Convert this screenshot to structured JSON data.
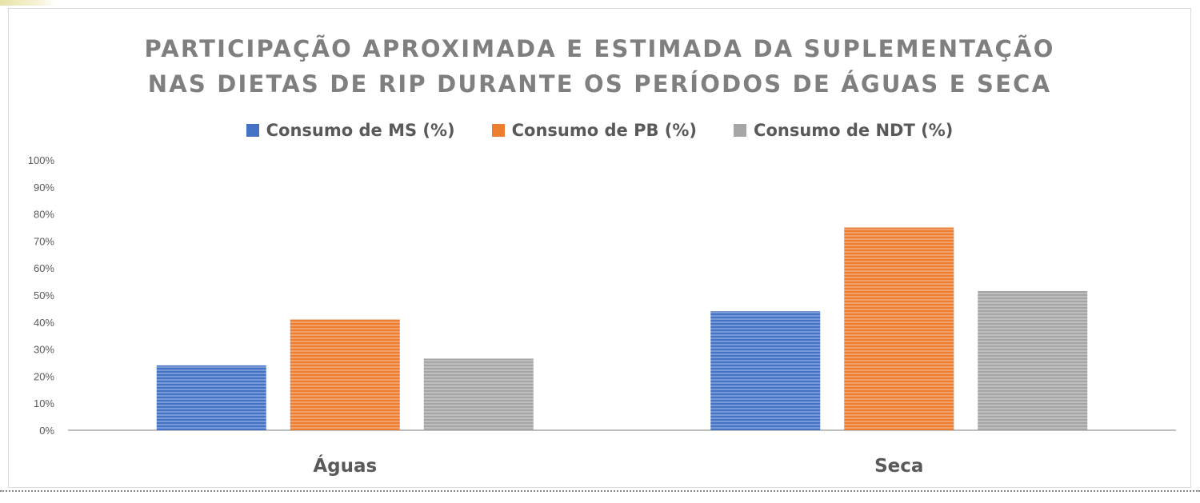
{
  "chart_data": {
    "type": "bar",
    "title_lines": [
      "PARTICIPAÇÃO APROXIMADA E ESTIMADA DA SUPLEMENTAÇÃO",
      "NAS DIETAS DE RIP DURANTE OS PERÍODOS DE ÁGUAS E SECA"
    ],
    "categories": [
      "Águas",
      "Seca"
    ],
    "series": [
      {
        "name": "Consumo de MS (%)",
        "values": [
          24,
          44
        ],
        "color": "#4472c4"
      },
      {
        "name": "Consumo de PB (%)",
        "values": [
          41,
          75
        ],
        "color": "#ed7d31"
      },
      {
        "name": "Consumo de NDT (%)",
        "values": [
          26.5,
          51.5
        ],
        "color": "#a5a5a5"
      }
    ],
    "ylim": [
      0,
      100
    ],
    "y_ticks": [
      "0%",
      "10%",
      "20%",
      "30%",
      "40%",
      "50%",
      "60%",
      "70%",
      "80%",
      "90%",
      "100%"
    ],
    "xlabel": "",
    "ylabel": "",
    "grid": false,
    "legend_position": "top"
  }
}
